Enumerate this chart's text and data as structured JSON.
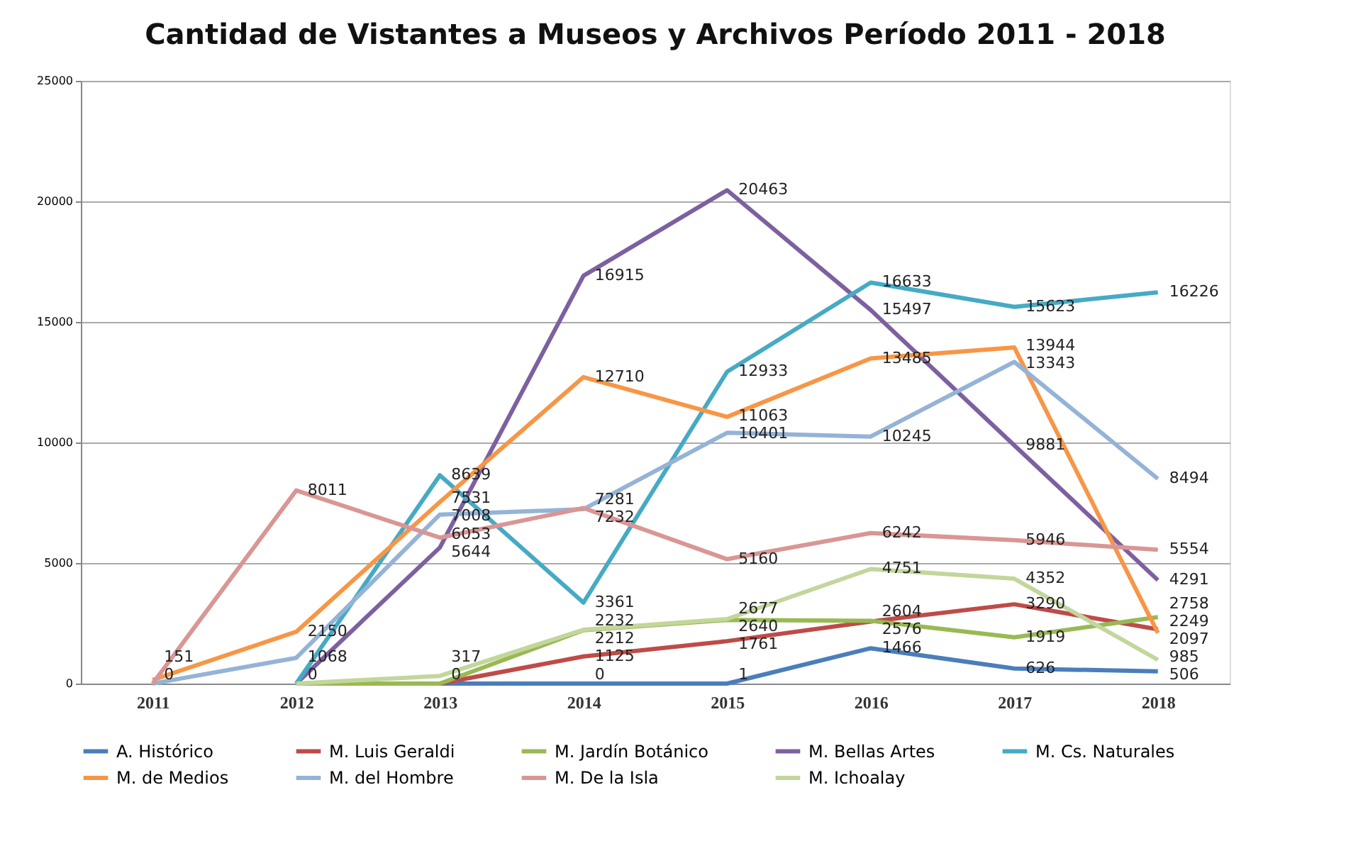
{
  "chart_data": {
    "type": "line",
    "title": "Cantidad de Vistantes a Museos y Archivos Período 2011 - 2018",
    "categories": [
      "2011",
      "2012",
      "2013",
      "2014",
      "2015",
      "2016",
      "2017",
      "2018"
    ],
    "ylim": [
      0,
      25000
    ],
    "yticks": [
      0,
      5000,
      10000,
      15000,
      20000,
      25000
    ],
    "grid": "y",
    "legend": "bottom",
    "marker": "none",
    "line_style": "solid",
    "series": [
      {
        "name": "A. Histórico",
        "color": "#4a7ebb",
        "values": [
          null,
          null,
          0,
          0,
          1,
          1466,
          626,
          506
        ],
        "value_labels": [
          null,
          null,
          "0",
          "0",
          "1",
          "1466",
          "626",
          "506"
        ]
      },
      {
        "name": "M. Luis Geraldi",
        "color": "#be4b48",
        "values": [
          null,
          null,
          0,
          1125,
          1761,
          2576,
          3290,
          2249
        ],
        "value_labels": [
          null,
          null,
          null,
          "1125",
          "1761",
          "2576",
          "3290",
          "2249"
        ]
      },
      {
        "name": "M. Jardín Botánico",
        "color": "#98b954",
        "values": [
          null,
          0,
          0,
          2212,
          2640,
          2604,
          1919,
          2758
        ],
        "value_labels": [
          null,
          null,
          null,
          "2212",
          "2640",
          "2604",
          "1919",
          "2758"
        ]
      },
      {
        "name": "M. Bellas Artes",
        "color": "#7d60a0",
        "values": [
          null,
          0,
          5644,
          16915,
          20463,
          15497,
          9881,
          4291
        ],
        "value_labels": [
          null,
          "0",
          "5644",
          "16915",
          "20463",
          "15497",
          "9881",
          "4291"
        ]
      },
      {
        "name": "M. Cs. Naturales",
        "color": "#46aac5",
        "values": [
          null,
          0,
          8639,
          3361,
          12933,
          16633,
          15623,
          16226
        ],
        "value_labels": [
          null,
          null,
          "8639",
          "3361",
          "12933",
          "16633",
          "15623",
          "16226"
        ]
      },
      {
        "name": "M. de Medios",
        "color": "#f79646",
        "values": [
          151,
          2150,
          7531,
          12710,
          11063,
          13485,
          13944,
          2097
        ],
        "value_labels": [
          "151",
          "2150",
          "7531",
          "12710",
          "11063",
          "13485",
          "13944",
          "2097"
        ]
      },
      {
        "name": "M. del Hombre",
        "color": "#95b3d7",
        "values": [
          0,
          1068,
          7008,
          7232,
          10401,
          10245,
          13343,
          8494
        ],
        "value_labels": [
          "0",
          "1068",
          "7008",
          "7232",
          "10401",
          "10245",
          "13343",
          "8494"
        ]
      },
      {
        "name": "M. De la Isla",
        "color": "#d99694",
        "values": [
          0,
          8011,
          6053,
          7281,
          5160,
          6242,
          5946,
          5554
        ],
        "value_labels": [
          null,
          "8011",
          "6053",
          "7281",
          "5160",
          "6242",
          "5946",
          "5554"
        ]
      },
      {
        "name": "M. Ichoalay",
        "color": "#c3d69b",
        "values": [
          null,
          0,
          317,
          2232,
          2677,
          4751,
          4352,
          985
        ],
        "value_labels": [
          null,
          null,
          "317",
          "2232",
          "2677",
          "4751",
          "4352",
          "985"
        ]
      }
    ]
  }
}
